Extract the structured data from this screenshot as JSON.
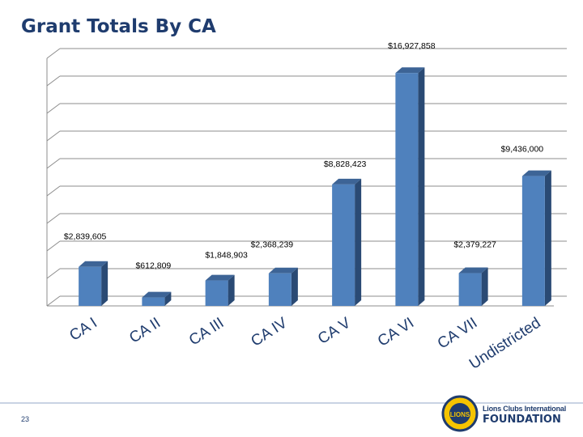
{
  "slide": {
    "title": "Grant Totals By CA",
    "page_number": "23",
    "logo": {
      "line1": "Lions Clubs International",
      "line2": "FOUNDATION",
      "emblem_text": "LIONS"
    }
  },
  "colors": {
    "bar_front": "#4f81bd",
    "bar_side": "#2a4a74",
    "bar_top": "#3d6496",
    "title": "#1f3c6e",
    "grid": "#8c8c8c"
  },
  "chart_data": {
    "type": "bar",
    "title": "",
    "xlabel": "",
    "ylabel": "",
    "categories": [
      "CA I",
      "CA II",
      "CA III",
      "CA IV",
      "CA V",
      "CA VI",
      "CA VII",
      "Undistricted"
    ],
    "values": [
      2839605,
      612809,
      1848903,
      2368239,
      8828423,
      16927858,
      2379227,
      9436000
    ],
    "data_labels": [
      "$2,839,605",
      "$612,809",
      "$1,848,903",
      "$2,368,239",
      "$8,828,423",
      "$16,927,858",
      "$2,379,227",
      "$9,436,000"
    ],
    "ylim": [
      0,
      18000000
    ],
    "grid": true,
    "legend": "none",
    "style": "3d-column"
  }
}
